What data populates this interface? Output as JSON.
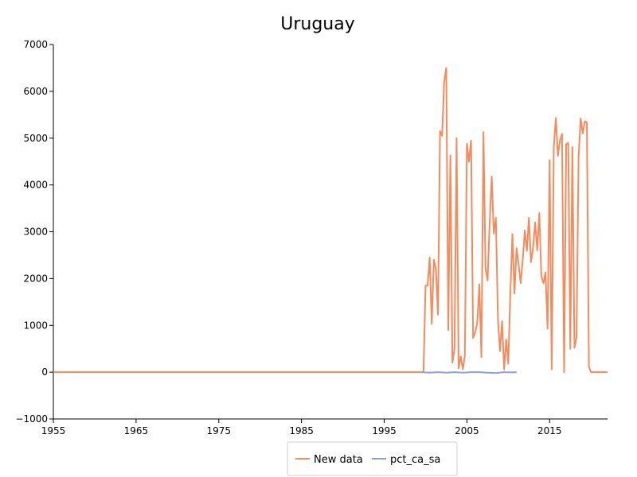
{
  "chart_data": {
    "type": "line",
    "title": "Uruguay",
    "xlabel": "",
    "ylabel": "",
    "xlim": [
      1955,
      2022
    ],
    "ylim": [
      -1000,
      7000
    ],
    "x_ticks": [
      "1955",
      "1965",
      "1975",
      "1985",
      "1995",
      "2005",
      "2015"
    ],
    "y_ticks": [
      "-1000",
      "0",
      "1000",
      "2000",
      "3000",
      "4000",
      "5000",
      "6000",
      "7000"
    ],
    "grid": false,
    "legend_position": "bottom-center",
    "colors": {
      "New data": "#f58b5c",
      "pct_ca_sa": "#8f9ddb"
    },
    "series": [
      {
        "name": "New data",
        "color": "#f58b5c",
        "points": [
          [
            1955,
            0
          ],
          [
            1999.5,
            0
          ],
          [
            1999.75,
            0
          ],
          [
            2000.0,
            1850
          ],
          [
            2000.25,
            1850
          ],
          [
            2000.5,
            2450
          ],
          [
            2000.75,
            1030
          ],
          [
            2001.0,
            2400
          ],
          [
            2001.25,
            2200
          ],
          [
            2001.5,
            1230
          ],
          [
            2001.75,
            5150
          ],
          [
            2002.0,
            5050
          ],
          [
            2002.25,
            6200
          ],
          [
            2002.5,
            6500
          ],
          [
            2002.75,
            900
          ],
          [
            2003.0,
            4630
          ],
          [
            2003.25,
            200
          ],
          [
            2003.5,
            500
          ],
          [
            2003.75,
            5000
          ],
          [
            2004.0,
            80
          ],
          [
            2004.25,
            340
          ],
          [
            2004.5,
            60
          ],
          [
            2004.75,
            350
          ],
          [
            2005.0,
            4880
          ],
          [
            2005.25,
            4500
          ],
          [
            2005.5,
            4950
          ],
          [
            2005.75,
            730
          ],
          [
            2006.0,
            850
          ],
          [
            2006.25,
            1050
          ],
          [
            2006.5,
            1880
          ],
          [
            2006.75,
            320
          ],
          [
            2007.0,
            5130
          ],
          [
            2007.25,
            2200
          ],
          [
            2007.5,
            1960
          ],
          [
            2007.75,
            3200
          ],
          [
            2008.0,
            4180
          ],
          [
            2008.25,
            2960
          ],
          [
            2008.5,
            3300
          ],
          [
            2008.75,
            1150
          ],
          [
            2009.0,
            450
          ],
          [
            2009.25,
            1090
          ],
          [
            2009.5,
            60
          ],
          [
            2009.75,
            700
          ],
          [
            2010.0,
            180
          ],
          [
            2010.25,
            1700
          ],
          [
            2010.5,
            2950
          ],
          [
            2010.75,
            1680
          ],
          [
            2011.0,
            2650
          ],
          [
            2011.25,
            2300
          ],
          [
            2011.5,
            1900
          ],
          [
            2011.75,
            2400
          ],
          [
            2012.0,
            3030
          ],
          [
            2012.25,
            2590
          ],
          [
            2012.5,
            3300
          ],
          [
            2012.75,
            2350
          ],
          [
            2013.0,
            2660
          ],
          [
            2013.25,
            3200
          ],
          [
            2013.5,
            2600
          ],
          [
            2013.75,
            3400
          ],
          [
            2014.0,
            2040
          ],
          [
            2014.25,
            1900
          ],
          [
            2014.5,
            2130
          ],
          [
            2014.75,
            930
          ],
          [
            2015.0,
            4530
          ],
          [
            2015.25,
            60
          ],
          [
            2015.5,
            4800
          ],
          [
            2015.75,
            5430
          ],
          [
            2016.0,
            4620
          ],
          [
            2016.25,
            4950
          ],
          [
            2016.5,
            5090
          ],
          [
            2016.75,
            0
          ],
          [
            2017.0,
            4870
          ],
          [
            2017.25,
            4900
          ],
          [
            2017.5,
            500
          ],
          [
            2017.75,
            4810
          ],
          [
            2018.0,
            520
          ],
          [
            2018.25,
            740
          ],
          [
            2018.5,
            4600
          ],
          [
            2018.75,
            5420
          ],
          [
            2019.0,
            5100
          ],
          [
            2019.25,
            5360
          ],
          [
            2019.5,
            5340
          ],
          [
            2019.75,
            120
          ],
          [
            2020.0,
            0
          ],
          [
            2022,
            0
          ]
        ]
      },
      {
        "name": "pct_ca_sa",
        "color": "#8f9ddb",
        "points": [
          [
            1999.5,
            0
          ],
          [
            2000.5,
            -10
          ],
          [
            2001.5,
            0
          ],
          [
            2002.5,
            -10
          ],
          [
            2003.5,
            0
          ],
          [
            2004.5,
            -10
          ],
          [
            2005.5,
            0
          ],
          [
            2006.5,
            0
          ],
          [
            2007.5,
            -10
          ],
          [
            2008.5,
            -20
          ],
          [
            2009.5,
            0
          ],
          [
            2010.5,
            -5
          ],
          [
            2011.0,
            0
          ]
        ]
      }
    ]
  }
}
